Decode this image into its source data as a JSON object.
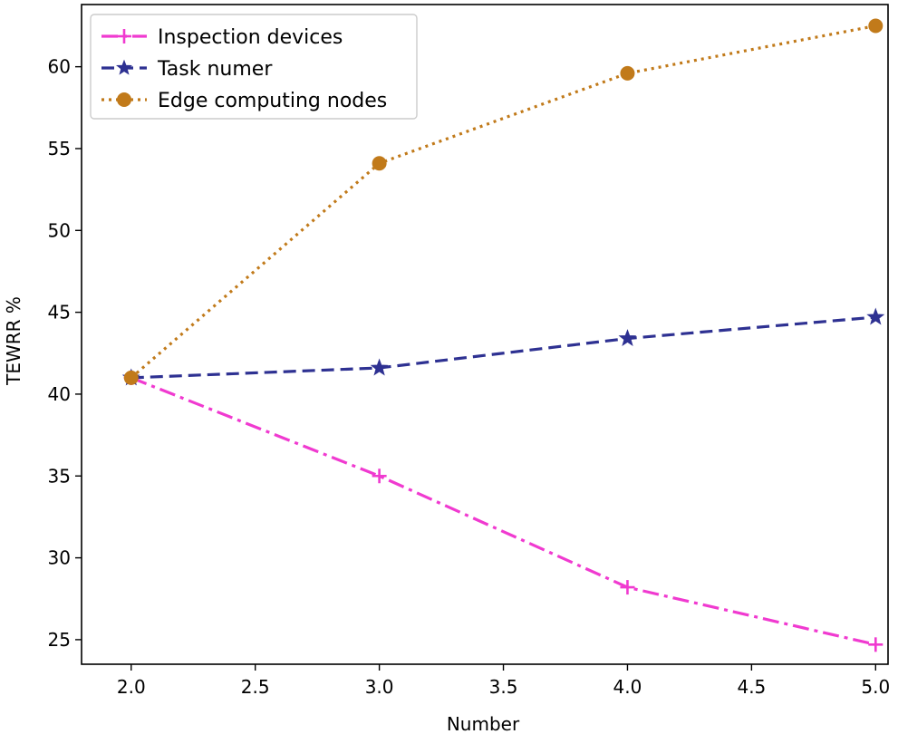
{
  "chart_data": {
    "type": "line",
    "title": "",
    "xlabel": "Number",
    "ylabel": "TEWRR %",
    "xlim": [
      1.8,
      5.05
    ],
    "ylim": [
      23.5,
      63.8
    ],
    "x_ticks": [
      2.0,
      2.5,
      3.0,
      3.5,
      4.0,
      4.5,
      5.0
    ],
    "x_tick_labels": [
      "2.0",
      "2.5",
      "3.0",
      "3.5",
      "4.0",
      "4.5",
      "5.0"
    ],
    "y_ticks": [
      25,
      30,
      35,
      40,
      45,
      50,
      55,
      60
    ],
    "y_tick_labels": [
      "25",
      "30",
      "35",
      "40",
      "45",
      "50",
      "55",
      "60"
    ],
    "grid": false,
    "legend_position": "top-left",
    "series": [
      {
        "name": "Inspection devices",
        "color": "#f03ad0",
        "line_style": "dashdot",
        "marker": "plus",
        "x": [
          2.0,
          3.0,
          4.0,
          5.0
        ],
        "values": [
          41.0,
          35.0,
          28.2,
          24.7
        ]
      },
      {
        "name": "Task numer",
        "color": "#2e3192",
        "line_style": "dashed",
        "marker": "star",
        "x": [
          2.0,
          3.0,
          4.0,
          5.0
        ],
        "values": [
          41.0,
          41.6,
          43.4,
          44.7
        ]
      },
      {
        "name": "Edge computing nodes",
        "color": "#c17a1a",
        "line_style": "dotted",
        "marker": "circle",
        "x": [
          2.0,
          3.0,
          4.0,
          5.0
        ],
        "values": [
          41.0,
          54.1,
          59.6,
          62.5
        ]
      }
    ]
  }
}
